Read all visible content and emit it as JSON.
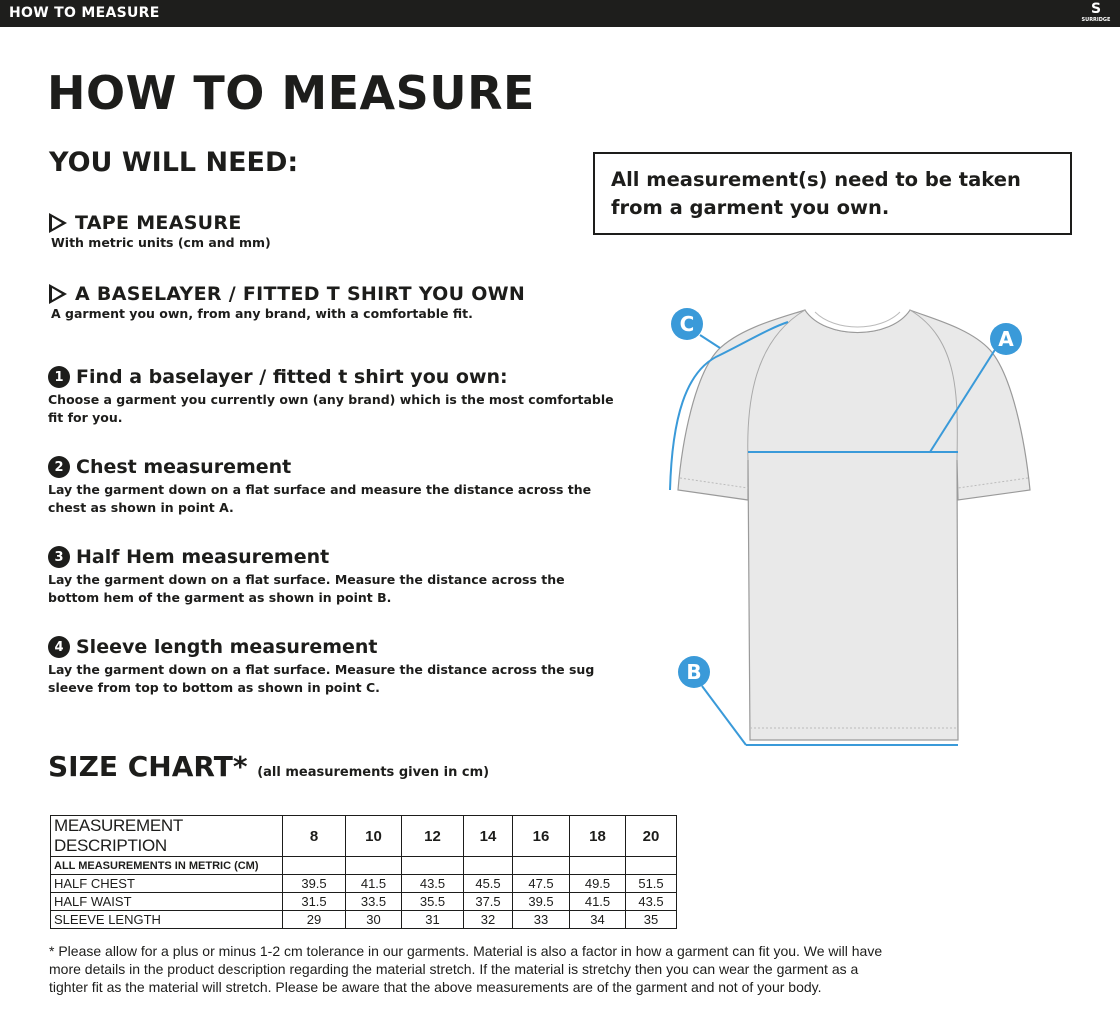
{
  "header": {
    "title": "HOW TO MEASURE",
    "logo_text": "SURRIDGE"
  },
  "page_title": "HOW TO MEASURE",
  "you_will_need": {
    "title": "YOU WILL NEED:",
    "items": [
      {
        "title": "TAPE MEASURE",
        "desc": "With metric units (cm and mm)"
      },
      {
        "title": "A BASELAYER / FITTED T SHIRT YOU OWN",
        "desc": "A garment you own, from any brand, with a comfortable fit."
      }
    ]
  },
  "note": "All measurement(s) need to be taken from a garment you own.",
  "steps": [
    {
      "num": "1",
      "title": "Find a baselayer / fitted t shirt you own:",
      "desc": "Choose a garment you currently own (any brand) which is the most comfortable fit for you."
    },
    {
      "num": "2",
      "title": "Chest measurement",
      "desc": "Lay the garment down on a flat surface and measure the distance across the chest as shown in point A."
    },
    {
      "num": "3",
      "title": "Half Hem measurement",
      "desc": "Lay the garment down on a flat surface. Measure the distance across the bottom hem of the garment as shown in point B."
    },
    {
      "num": "4",
      "title": "Sleeve length measurement",
      "desc": "Lay the garment down on a flat surface. Measure the distance across the sug sleeve from top to bottom as shown in point C."
    }
  ],
  "diagram": {
    "points": [
      "A",
      "B",
      "C"
    ],
    "accent": "#3a9ad9"
  },
  "size_chart": {
    "title": "SIZE CHART*",
    "subtitle": "(all measurements given in cm)",
    "header": [
      "MEASUREMENT DESCRIPTION",
      "8",
      "10",
      "12",
      "14",
      "16",
      "18",
      "20"
    ],
    "subheader": "ALL MEASUREMENTS IN METRIC (CM)",
    "rows": [
      {
        "label": "HALF CHEST",
        "values": [
          "39.5",
          "41.5",
          "43.5",
          "45.5",
          "47.5",
          "49.5",
          "51.5"
        ]
      },
      {
        "label": "HALF WAIST",
        "values": [
          "31.5",
          "33.5",
          "35.5",
          "37.5",
          "39.5",
          "41.5",
          "43.5"
        ]
      },
      {
        "label": "SLEEVE LENGTH",
        "values": [
          "29",
          "30",
          "31",
          "32",
          "33",
          "34",
          "35"
        ]
      }
    ]
  },
  "footnote": "* Please allow for a plus or minus 1-2 cm tolerance in our garments. Material is also a factor in how a garment can fit you. We will have more details in the product description regarding the material stretch.  If the material is stretchy then you can wear the garment as a tighter fit as the material will stretch.  Please be aware that the above measurements are of the garment and not of your body."
}
